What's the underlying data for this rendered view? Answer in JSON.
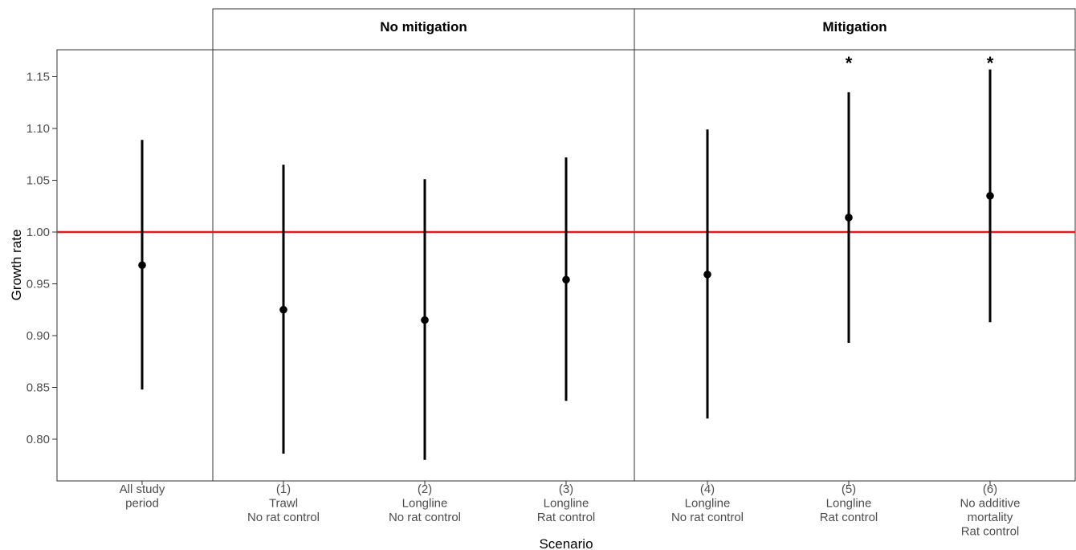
{
  "chart_data": {
    "type": "scatter",
    "subtype": "point-with-interval",
    "title": "",
    "xlabel": "Scenario",
    "ylabel": "Growth rate",
    "ylim": [
      0.76,
      1.175
    ],
    "yticks": [
      0.8,
      0.85,
      0.9,
      0.95,
      1.0,
      1.05,
      1.1,
      1.15
    ],
    "ytick_labels": [
      "0.80",
      "0.85",
      "0.90",
      "0.95",
      "1.00",
      "1.05",
      "1.10",
      "1.15"
    ],
    "reference_line": {
      "y": 1.0,
      "color": "#e31a1c"
    },
    "grid": false,
    "facets": [
      {
        "title": "",
        "categories": [
          0
        ]
      },
      {
        "title": "No mitigation",
        "categories": [
          1,
          2,
          3
        ]
      },
      {
        "title": "Mitigation",
        "categories": [
          4,
          5,
          6
        ]
      }
    ],
    "categories": [
      {
        "lines": [
          "All study",
          "period"
        ],
        "value": 0.968,
        "lower": 0.848,
        "upper": 1.089,
        "marker": ""
      },
      {
        "lines": [
          "(1)",
          "Trawl",
          "No rat control"
        ],
        "value": 0.925,
        "lower": 0.786,
        "upper": 1.065,
        "marker": ""
      },
      {
        "lines": [
          "(2)",
          "Longline",
          "No rat control"
        ],
        "value": 0.915,
        "lower": 0.78,
        "upper": 1.051,
        "marker": ""
      },
      {
        "lines": [
          "(3)",
          "Longline",
          "Rat control"
        ],
        "value": 0.954,
        "lower": 0.837,
        "upper": 1.072,
        "marker": ""
      },
      {
        "lines": [
          "(4)",
          "Longline",
          "No rat control"
        ],
        "value": 0.959,
        "lower": 0.82,
        "upper": 1.099,
        "marker": ""
      },
      {
        "lines": [
          "(5)",
          "Longline",
          "Rat control"
        ],
        "value": 1.014,
        "lower": 0.893,
        "upper": 1.135,
        "marker": "*"
      },
      {
        "lines": [
          "(6)",
          "No additive",
          "mortality",
          "Rat control"
        ],
        "value": 1.035,
        "lower": 0.913,
        "upper": 1.157,
        "marker": "*"
      }
    ]
  }
}
